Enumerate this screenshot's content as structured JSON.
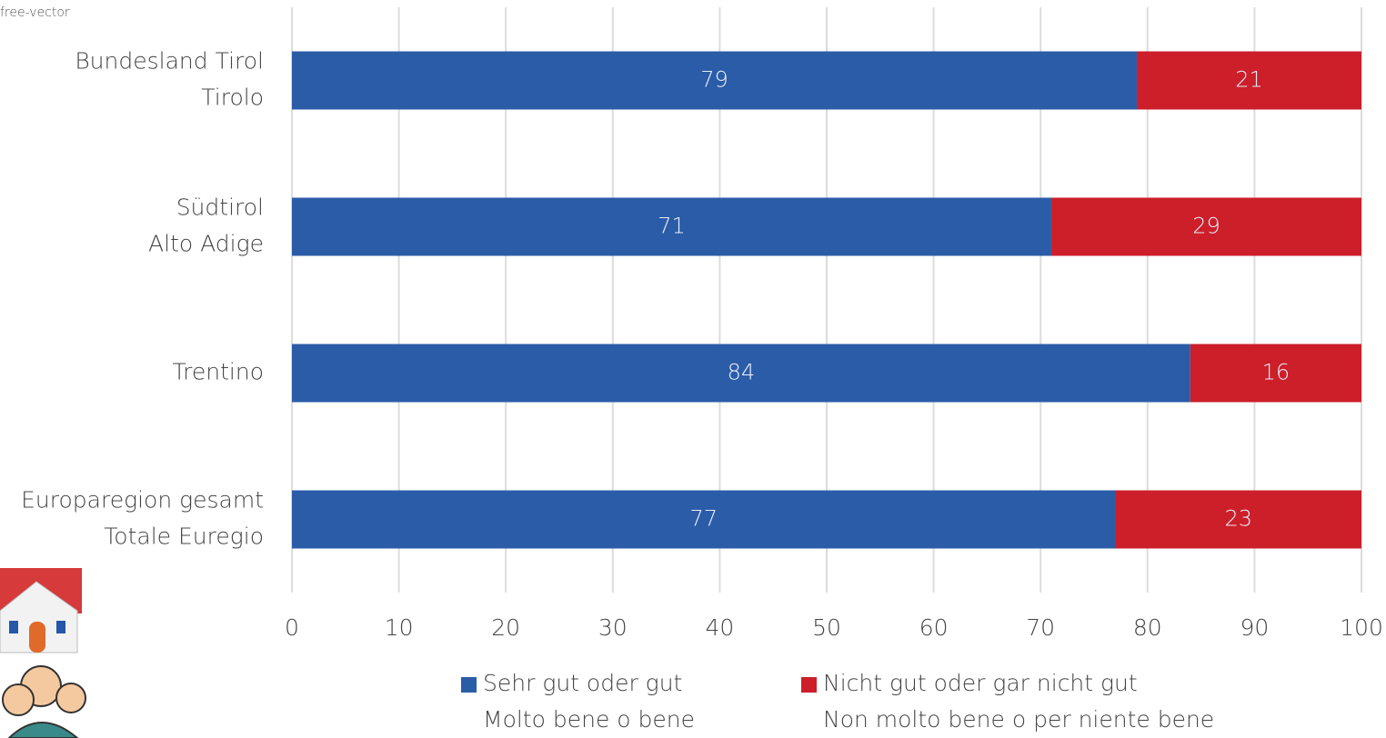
{
  "chart_data": {
    "type": "stacked_barh",
    "watermark": "free-vector",
    "categories": [
      "Bundesland Tirol\nTirolo",
      "Südtirol\nAlto Adige",
      "Trentino",
      "Europaregion gesamt\nTotale Euregio"
    ],
    "series": [
      {
        "name": "Sehr gut oder gut\nMolto bene o bene",
        "color": "#2b5ca8",
        "values": [
          79,
          71,
          84,
          77
        ]
      },
      {
        "name": "Nicht gut oder gar nicht gut\nNon molto bene o per niente bene",
        "color": "#cc1f2a",
        "values": [
          21,
          29,
          16,
          23
        ]
      }
    ],
    "xlim": [
      0,
      100
    ],
    "xticks": [
      0,
      10,
      20,
      30,
      40,
      50,
      60,
      70,
      80,
      90,
      100
    ],
    "grid": true
  }
}
